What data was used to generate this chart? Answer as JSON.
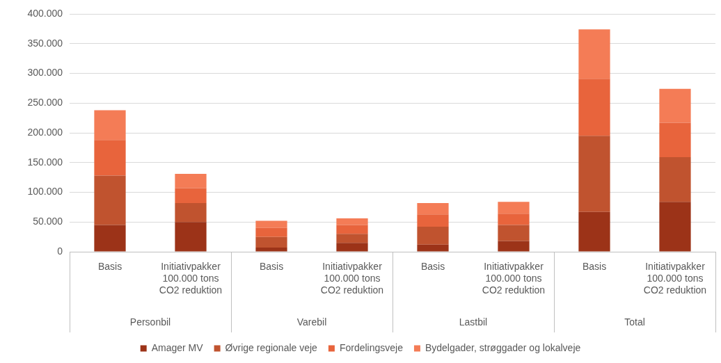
{
  "chart_data": {
    "type": "bar",
    "stacked": true,
    "categories": [
      "Basis",
      "Initiativpakker\n100.000 tons\nCO2 reduktion",
      "Basis",
      "Initiativpakker\n100.000 tons\nCO2 reduktion",
      "Basis",
      "Initiativpakker\n100.000 tons\nCO2 reduktion",
      "Basis",
      "Initiativpakker\n100.000 tons\nCO2 reduktion"
    ],
    "series": [
      {
        "name": "Amager MV",
        "color": "#9c3318",
        "values": [
          45000,
          50000,
          7000,
          15000,
          12000,
          18000,
          67000,
          84000
        ]
      },
      {
        "name": "Øvrige regionale veje",
        "color": "#c0532f",
        "values": [
          83000,
          32000,
          18000,
          15000,
          30000,
          27000,
          128000,
          75000
        ]
      },
      {
        "name": "Fordelingsveje",
        "color": "#e8643c",
        "values": [
          60000,
          25000,
          15000,
          15000,
          21000,
          19000,
          96000,
          58000
        ]
      },
      {
        "name": "Bydelgader, strøggader og lokalveje",
        "color": "#f47c56",
        "values": [
          50000,
          24000,
          12000,
          11000,
          19000,
          20000,
          83000,
          57000
        ]
      }
    ],
    "ylim": [
      0,
      400000
    ],
    "yticks": [
      0,
      {
        "value": 50000,
        "label": "50.000"
      },
      {
        "value": 100000,
        "label": "100.000"
      },
      {
        "value": 150000,
        "label": "150.000"
      },
      {
        "value": 200000,
        "label": "200.000"
      },
      {
        "value": 250000,
        "label": "250.000"
      },
      {
        "value": 300000,
        "label": "300.000"
      },
      {
        "value": 350000,
        "label": "350.000"
      },
      {
        "value": 400000,
        "label": "400.000"
      }
    ],
    "grid": "y",
    "legend": "bottom",
    "annotations": [
      "Personbil",
      "Varebil",
      "Lastbil",
      "Total"
    ]
  }
}
